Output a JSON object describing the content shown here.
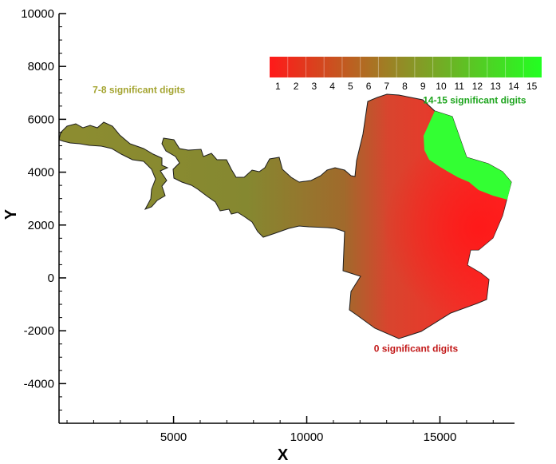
{
  "chart_data": {
    "type": "heatmap",
    "title": "",
    "xlabel": "X",
    "ylabel": "Y",
    "xlim": [
      700,
      17800
    ],
    "ylim": [
      -5500,
      10000
    ],
    "x_ticks": [
      5000,
      10000,
      15000
    ],
    "x_tick_labels": [
      "5000",
      "10000",
      "15000"
    ],
    "y_ticks": [
      10000,
      8000,
      6000,
      4000,
      2000,
      0,
      -2000,
      -4000
    ],
    "y_tick_labels": [
      "10000",
      "8000",
      "6000",
      "4000",
      "2000",
      "0",
      "-2000",
      "-4000"
    ],
    "grid": false,
    "colorbar": {
      "levels": [
        1,
        2,
        3,
        4,
        5,
        6,
        7,
        8,
        9,
        10,
        11,
        12,
        13,
        14,
        15
      ],
      "labels": [
        "1",
        "2",
        "3",
        "4",
        "5",
        "6",
        "7",
        "8",
        "9",
        "10",
        "11",
        "12",
        "13",
        "14",
        "15"
      ],
      "color_low": "#ff1a1a",
      "color_mid": "#8f8f26",
      "color_high": "#22ff22"
    },
    "annotations": [
      {
        "text": "7-8 significant digits",
        "x": 3700,
        "y": 7000,
        "color": "#a4a430"
      },
      {
        "text": "14-15 significant digits",
        "x": 16300,
        "y": 6600,
        "color": "#1ea51e"
      },
      {
        "text": "0 significant digits",
        "x": 14100,
        "y": -2800,
        "color": "#c21818"
      }
    ],
    "region": {
      "outline_color": "#222222",
      "red_zone_color": "#f03a32",
      "green_zone_color": "#33ff33"
    }
  }
}
